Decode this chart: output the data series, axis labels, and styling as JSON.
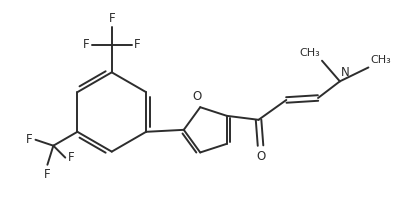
{
  "bg_color": "#ffffff",
  "line_color": "#2d2d2d",
  "figsize": [
    3.98,
    2.2
  ],
  "dpi": 100,
  "xlim": [
    0,
    10
  ],
  "ylim": [
    0,
    5.5
  ]
}
